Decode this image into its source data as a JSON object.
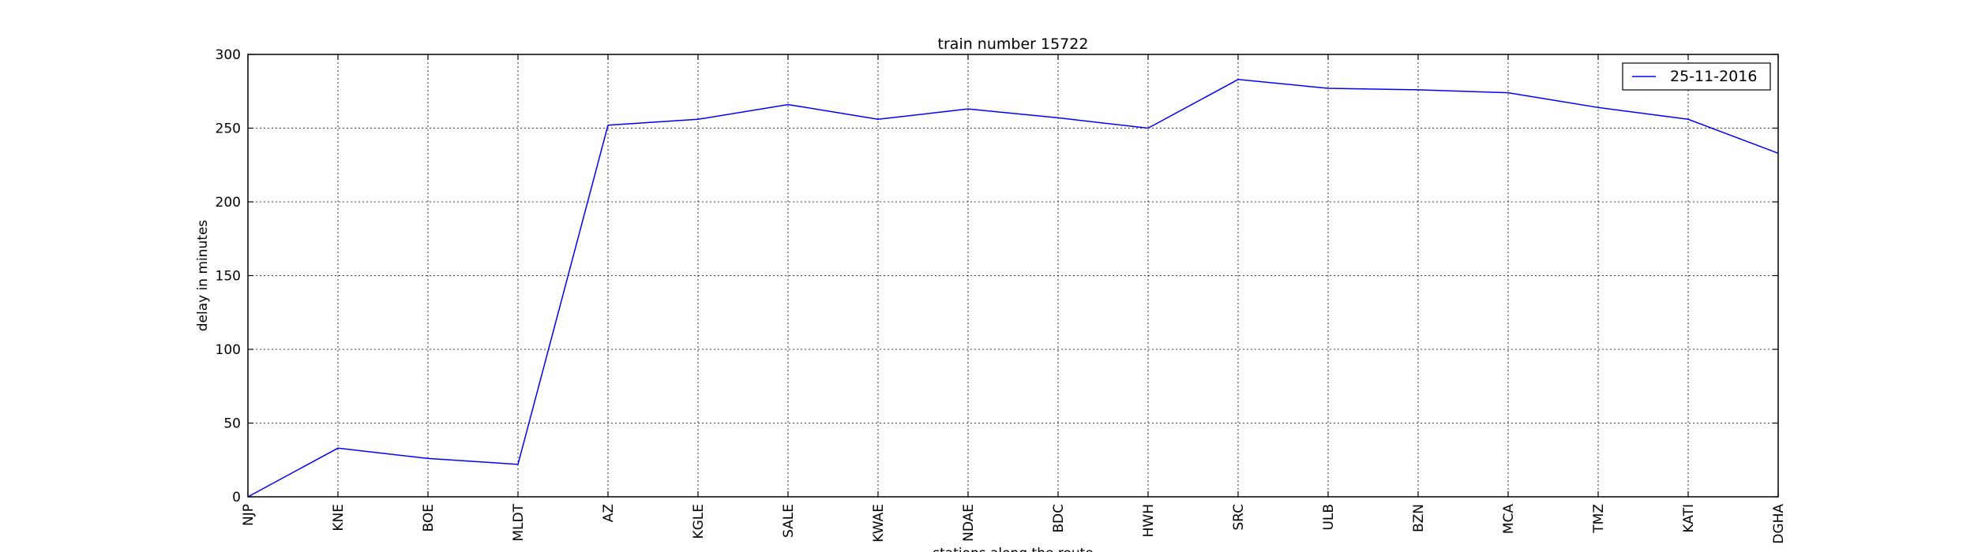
{
  "chart_data": {
    "type": "line",
    "title": "train number 15722",
    "xlabel": "stations along the route",
    "ylabel": "delay in minutes",
    "categories": [
      "NJP",
      "KNE",
      "BOE",
      "MLDT",
      "AZ",
      "KGLE",
      "SALE",
      "KWAE",
      "NDAE",
      "BDC",
      "HWH",
      "SRC",
      "ULB",
      "BZN",
      "MCA",
      "TMZ",
      "KATI",
      "DGHA"
    ],
    "series": [
      {
        "name": "25-11-2016",
        "color": "#0000ff",
        "values": [
          0,
          33,
          26,
          22,
          252,
          256,
          266,
          256,
          263,
          257,
          250,
          283,
          277,
          276,
          274,
          264,
          256,
          233
        ]
      }
    ],
    "ylim": [
      0,
      300
    ],
    "yticks": [
      0,
      50,
      100,
      150,
      200,
      250,
      300
    ],
    "grid": true,
    "legend_position": "top-right"
  }
}
